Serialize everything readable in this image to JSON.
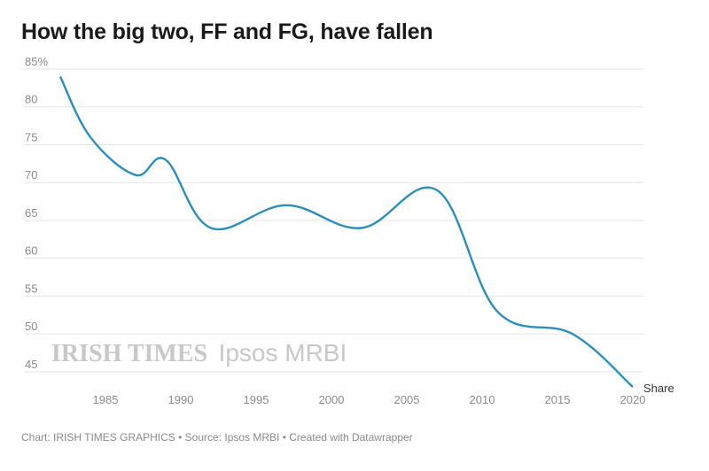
{
  "chart_data": {
    "type": "line",
    "title": "How the big two, FF and FG, have fallen",
    "xlabel": "",
    "ylabel": "",
    "y_unit_suffix": "%",
    "xlim": [
      1982,
      2020
    ],
    "ylim": [
      43,
      85
    ],
    "x_ticks": [
      1985,
      1990,
      1995,
      2000,
      2005,
      2010,
      2015,
      2020
    ],
    "y_ticks": [
      45,
      50,
      55,
      60,
      65,
      70,
      75,
      80,
      85
    ],
    "series": [
      {
        "name": "Share",
        "color": "#2a8fbd",
        "x": [
          1982,
          1984,
          1987,
          1989,
          1992,
          1997,
          2002,
          2007,
          2011,
          2016,
          2020
        ],
        "values": [
          84,
          76,
          71,
          73,
          64,
          67,
          64,
          69,
          53,
          50,
          43
        ]
      }
    ],
    "series_label": "Share",
    "watermark": {
      "part1": "IRISH TIMES",
      "part2": "Ipsos MRBI"
    }
  },
  "footer": "Chart: IRISH TIMES GRAPHICS • Source: Ipsos MRBI • Created with Datawrapper"
}
